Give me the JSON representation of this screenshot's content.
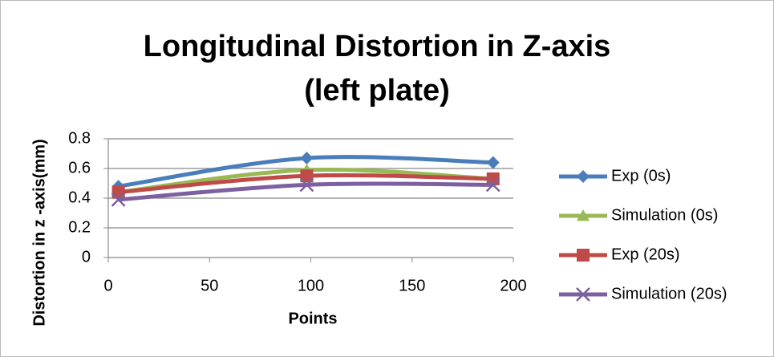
{
  "chart_data": {
    "type": "line",
    "title": [
      "Longitudinal Distortion in Z-axis",
      "(left plate)"
    ],
    "x_label": "Points",
    "y_label": "Distortion in z -axis(mm)",
    "xlim": [
      0,
      200
    ],
    "xticks": [
      0,
      50,
      100,
      150,
      200
    ],
    "ylim": [
      0,
      0.8
    ],
    "yticks": [
      0,
      0.2,
      0.4,
      0.6,
      0.8
    ],
    "grid": true,
    "legend": "right",
    "smooth": true,
    "series": [
      {
        "name": "Exp (0s)",
        "color": "#4a7ebb",
        "marker": "diamond",
        "x": [
          5,
          98,
          190
        ],
        "values": [
          0.48,
          0.67,
          0.64
        ]
      },
      {
        "name": "Simulation (0s)",
        "color": "#98b954",
        "marker": "triangle",
        "x": [
          5,
          98,
          190
        ],
        "values": [
          0.44,
          0.59,
          0.53
        ]
      },
      {
        "name": "Exp (20s)",
        "color": "#be4b48",
        "marker": "square",
        "x": [
          5,
          98,
          190
        ],
        "values": [
          0.44,
          0.55,
          0.53
        ]
      },
      {
        "name": "Simulation (20s)",
        "color": "#7d60a0",
        "marker": "x",
        "x": [
          5,
          98,
          190
        ],
        "values": [
          0.39,
          0.49,
          0.49
        ]
      }
    ]
  }
}
